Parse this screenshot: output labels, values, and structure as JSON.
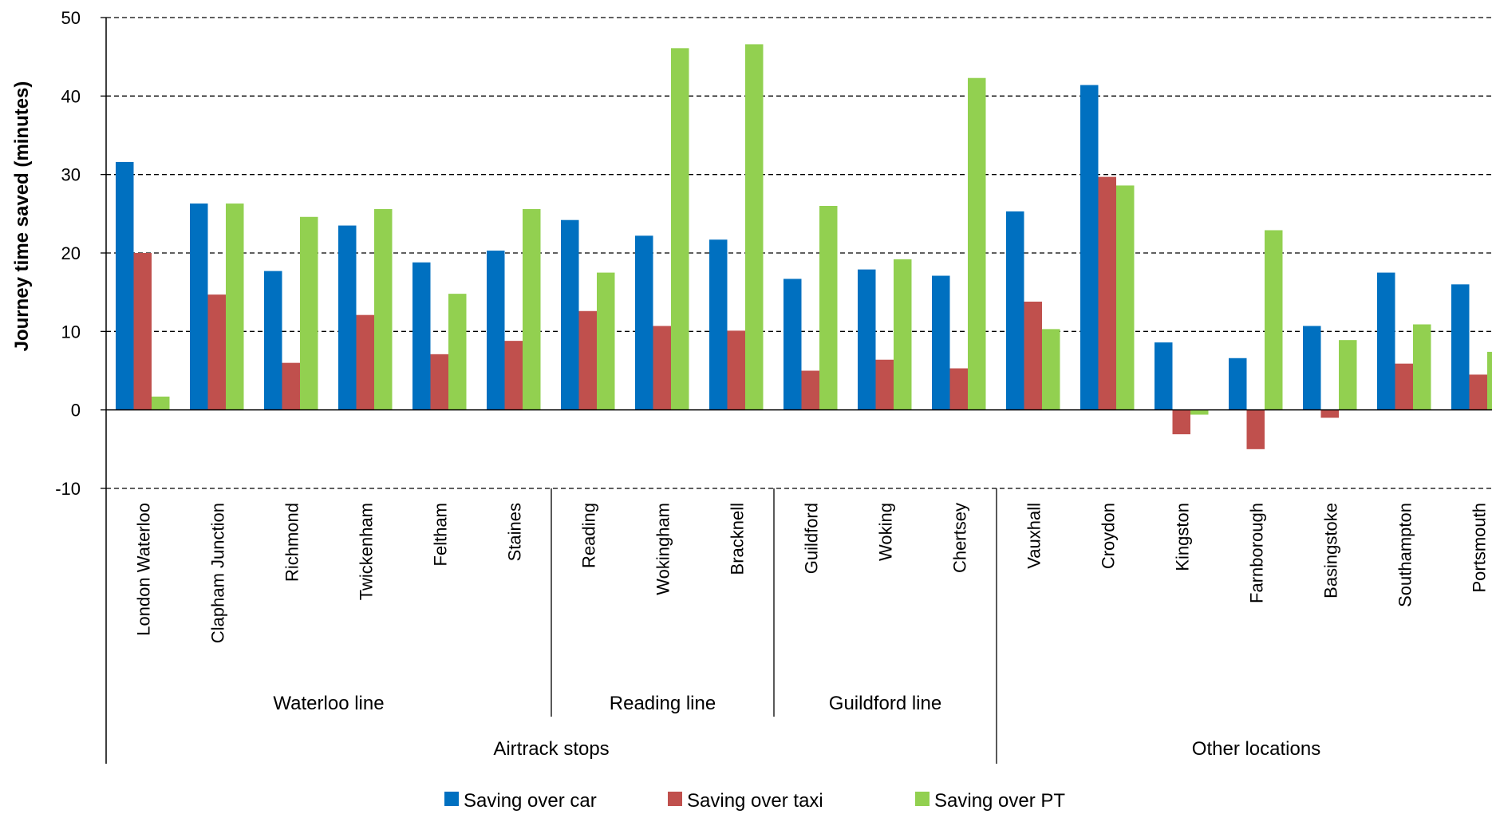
{
  "chart_data": {
    "type": "bar",
    "ylabel": "Journey time saved (minutes)",
    "xlabel": "",
    "ylim": [
      -10,
      50
    ],
    "yticks": [
      -10,
      0,
      10,
      20,
      30,
      40,
      50
    ],
    "grid": "horizontal-dashed",
    "legend_position": "bottom",
    "categories": [
      "London Waterloo",
      "Clapham Junction",
      "Richmond",
      "Twickenham",
      "Feltham",
      "Staines",
      "Reading",
      "Wokingham",
      "Bracknell",
      "Guildford",
      "Woking",
      "Chertsey",
      "Vauxhall",
      "Croydon",
      "Kingston",
      "Farnborough",
      "Basingstoke",
      "Southampton",
      "Portsmouth"
    ],
    "series": [
      {
        "name": "Saving over car",
        "color": "#0070C0",
        "values": [
          31.6,
          26.3,
          17.7,
          23.5,
          18.8,
          20.3,
          24.2,
          22.2,
          21.7,
          16.7,
          17.9,
          17.1,
          25.3,
          41.4,
          8.6,
          6.6,
          10.7,
          17.5,
          16.0
        ]
      },
      {
        "name": "Saving over taxi",
        "color": "#C0504D",
        "values": [
          20.0,
          14.7,
          6.0,
          12.1,
          7.1,
          8.8,
          12.6,
          10.7,
          10.1,
          5.0,
          6.4,
          5.3,
          13.8,
          29.7,
          -3.1,
          -5.0,
          -1.0,
          5.9,
          4.5
        ]
      },
      {
        "name": "Saving over PT",
        "color": "#92D050",
        "values": [
          1.7,
          26.3,
          24.6,
          25.6,
          14.8,
          25.6,
          17.5,
          46.1,
          46.6,
          26.0,
          19.2,
          42.3,
          10.3,
          28.6,
          -0.6,
          22.9,
          8.9,
          10.9,
          7.4
        ]
      }
    ],
    "groups_level1": [
      {
        "label": "Waterloo line",
        "start": 0,
        "end": 5
      },
      {
        "label": "Reading line",
        "start": 6,
        "end": 8
      },
      {
        "label": "Guildford line",
        "start": 9,
        "end": 11
      }
    ],
    "groups_level2": [
      {
        "label": "Airtrack stops",
        "start": 0,
        "end": 11
      },
      {
        "label": "Other locations",
        "start": 12,
        "end": 18
      }
    ]
  }
}
